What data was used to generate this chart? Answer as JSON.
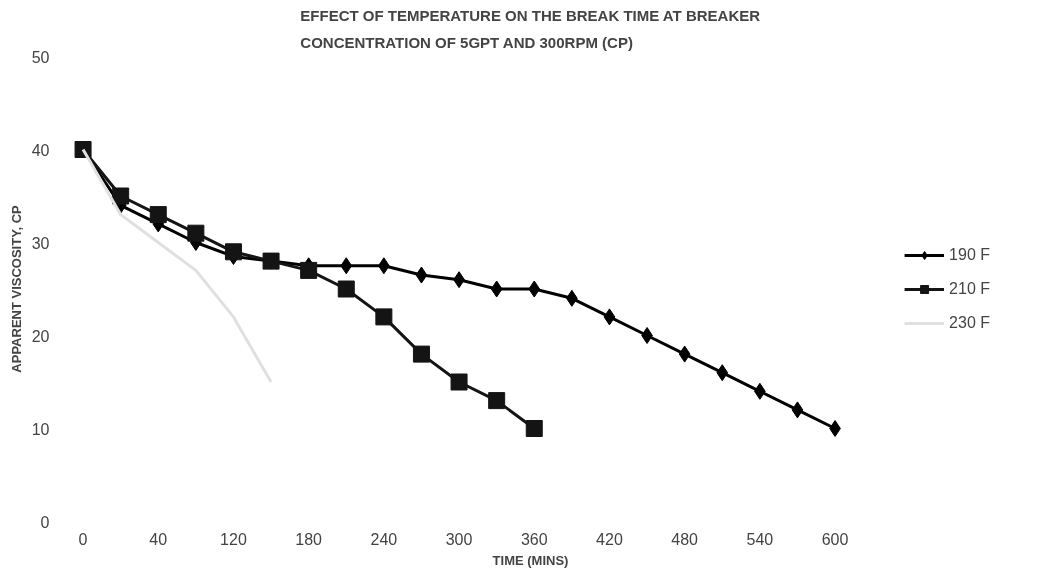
{
  "chart_data": {
    "type": "line",
    "title": "EFFECT OF TEMPERATURE ON THE BREAK TIME AT BREAKER CONCENTRATION OF 5GPT AND 300RPM (CP)",
    "xlabel": "TIME (MINS)",
    "ylabel": "APPARENT VISCOSITY, CP",
    "categories": [
      "0",
      null,
      "40",
      null,
      "120",
      null,
      "180",
      null,
      "240",
      null,
      "300",
      null,
      "360",
      null,
      "420",
      null,
      "480",
      null,
      "540",
      null,
      "600"
    ],
    "series": [
      {
        "name": "190 F",
        "color": "#000000",
        "marker": "diamond",
        "values": [
          40,
          34,
          32,
          30,
          28.5,
          28,
          27.5,
          27.5,
          27.5,
          26.5,
          26,
          25,
          25,
          24,
          22,
          20,
          18,
          16,
          14,
          12,
          10
        ]
      },
      {
        "name": "210 F",
        "color": "#141414",
        "marker": "square",
        "values": [
          40,
          35,
          33,
          31,
          29,
          28,
          27,
          25,
          22,
          18,
          15,
          13,
          10,
          null,
          null,
          null,
          null,
          null,
          null,
          null,
          null
        ]
      },
      {
        "name": "230 F",
        "color": "#e0e0e0",
        "marker": "none",
        "values": [
          40,
          33,
          30,
          27,
          22,
          15,
          null,
          null,
          null,
          null,
          null,
          null,
          null,
          null,
          null,
          null,
          null,
          null,
          null,
          null,
          null
        ]
      }
    ],
    "ylim": [
      0,
      50
    ],
    "yticks": [
      0,
      10,
      20,
      30,
      40,
      50
    ],
    "grid": false,
    "legend": "right"
  }
}
